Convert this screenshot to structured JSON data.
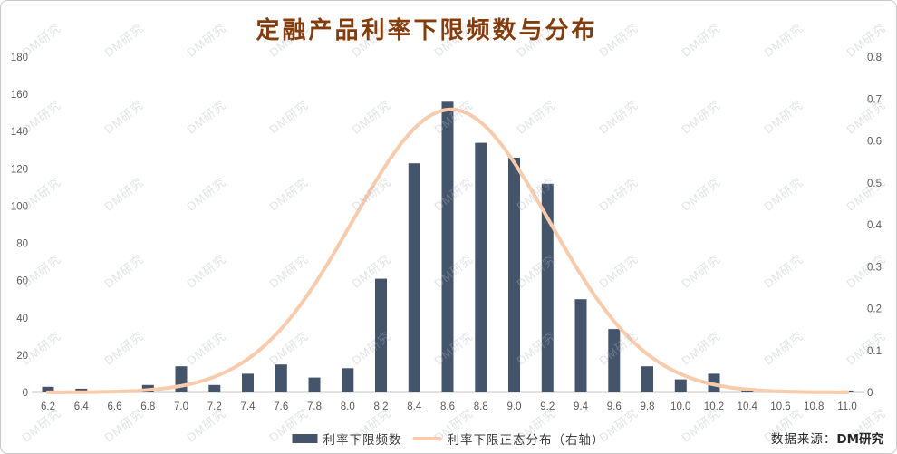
{
  "title": "定融产品利率下限频数与分布",
  "watermark": {
    "text": "DM研究"
  },
  "source_note": {
    "prefix": "数据来源：",
    "brand": "DM研究"
  },
  "legend": [
    {
      "label": "利率下限频数",
      "type": "bar",
      "color": "#44546A"
    },
    {
      "label": "利率下限正态分布（右轴）",
      "type": "line",
      "color": "#F8CBAD"
    }
  ],
  "colors": {
    "bar": "#44546A",
    "curve": "#F8CBAD",
    "title": "#843C0C",
    "axis_text": "#595959",
    "axis_line": "#D9D9D9",
    "watermark": "rgba(173,179,189,0.38)"
  },
  "chart_data": {
    "type": "combo",
    "title": "定融产品利率下限频数与分布",
    "categories": [
      "6.2",
      "6.4",
      "6.6",
      "6.8",
      "7.0",
      "7.2",
      "7.4",
      "7.6",
      "7.8",
      "8.0",
      "8.2",
      "8.4",
      "8.6",
      "8.8",
      "9.0",
      "9.2",
      "9.4",
      "9.6",
      "9.8",
      "10.0",
      "10.2",
      "10.4",
      "10.6",
      "10.8",
      "11.0"
    ],
    "series": [
      {
        "name": "利率下限频数",
        "type": "bar",
        "axis": "left",
        "color": "#44546A",
        "values": [
          3,
          2,
          0,
          4,
          14,
          4,
          10,
          15,
          8,
          13,
          61,
          123,
          156,
          134,
          126,
          112,
          50,
          34,
          14,
          7,
          10,
          2,
          0,
          0,
          1
        ]
      },
      {
        "name": "利率下限正态分布（右轴）",
        "type": "line",
        "axis": "right",
        "color": "#F8CBAD",
        "normal_curve": {
          "mean": 8.62,
          "sigma": 0.59,
          "peak": 0.675
        }
      }
    ],
    "left_axis": {
      "min": 0,
      "max": 180,
      "step": 20,
      "tick_labels": [
        "0",
        "20",
        "40",
        "60",
        "80",
        "100",
        "120",
        "140",
        "160",
        "180"
      ]
    },
    "right_axis": {
      "min": 0,
      "max": 0.8,
      "step": 0.1,
      "tick_labels": [
        "0",
        "0.1",
        "0.2",
        "0.3",
        "0.4",
        "0.5",
        "0.6",
        "0.7",
        "0.8"
      ]
    },
    "grid": false,
    "legend_position": "bottom"
  }
}
